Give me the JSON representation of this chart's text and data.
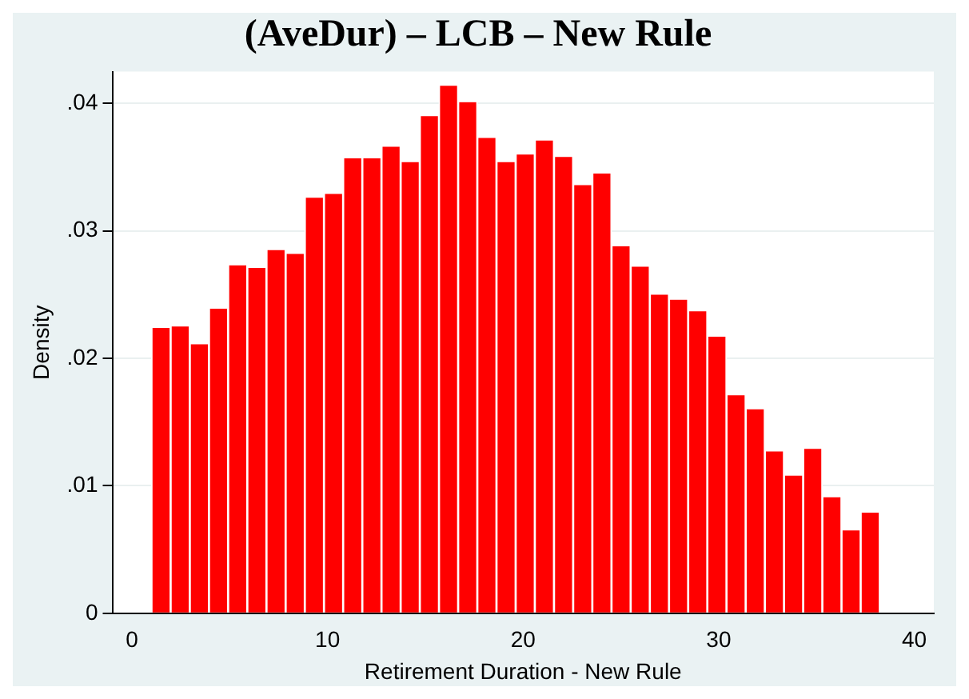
{
  "chart_data": {
    "type": "histogram",
    "title": "(AveDur) – LCB – New Rule",
    "xlabel": "Retirement Duration - New Rule",
    "ylabel": "Density",
    "bins": [
      1,
      1.98,
      2.96,
      3.94,
      4.92,
      5.9,
      6.88,
      7.86,
      8.84,
      9.82,
      10.8,
      11.78,
      12.76,
      13.74,
      14.72,
      15.7,
      16.68,
      17.66,
      18.64,
      19.62,
      20.6,
      21.58,
      22.56,
      23.54,
      24.52,
      25.5,
      26.48,
      27.46,
      28.44,
      29.42,
      30.4,
      31.38,
      32.36,
      33.34,
      34.32,
      35.3,
      36.28,
      37.26,
      38.24
    ],
    "values": [
      0.0224,
      0.0225,
      0.0211,
      0.0239,
      0.0273,
      0.0271,
      0.0285,
      0.0282,
      0.0326,
      0.0329,
      0.0357,
      0.0357,
      0.0366,
      0.0354,
      0.039,
      0.0414,
      0.0401,
      0.0373,
      0.0354,
      0.036,
      0.0371,
      0.0358,
      0.0336,
      0.0345,
      0.0288,
      0.0272,
      0.025,
      0.0246,
      0.0237,
      0.0217,
      0.0171,
      0.016,
      0.0127,
      0.0108,
      0.0129,
      0.0091,
      0.0065,
      0.0079
    ],
    "color": "#ff0000",
    "xlim": [
      -1,
      41
    ],
    "xticks": [
      0,
      10,
      20,
      30,
      40
    ],
    "ylim": [
      0,
      0.0425
    ],
    "yticks": [
      0,
      {
        "value": 0.01,
        "label": ".01"
      },
      {
        "value": 0.02,
        "label": ".02"
      },
      {
        "value": 0.03,
        "label": ".03"
      },
      {
        "value": 0.04,
        "label": ".04"
      }
    ],
    "grid": "y",
    "legend": false
  }
}
